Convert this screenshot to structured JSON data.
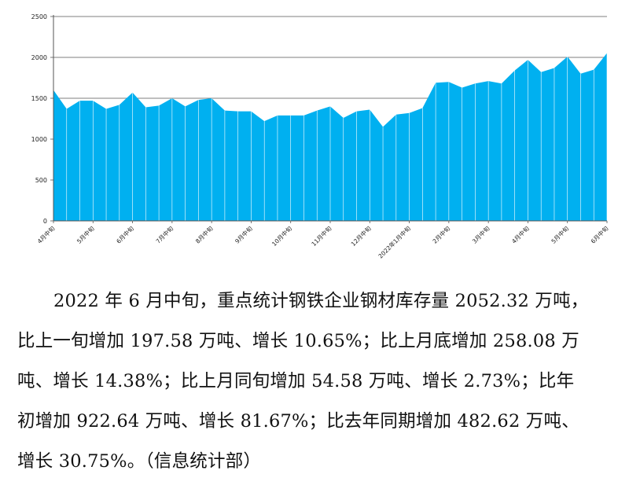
{
  "chart_data": {
    "type": "area",
    "title": "",
    "xlabel": "",
    "ylabel": "",
    "ylim": [
      0,
      2500
    ],
    "yticks": [
      0,
      500,
      1000,
      1500,
      2000,
      2500
    ],
    "x_tick_labels": [
      "4月中旬",
      "5月中旬",
      "6月中旬",
      "7月中旬",
      "8月中旬",
      "9月中旬",
      "10月中旬",
      "11月中旬",
      "12月中旬",
      "2022年1月中旬",
      "2月中旬",
      "3月中旬",
      "4月中旬",
      "5月中旬",
      "6月中旬"
    ],
    "grid": true,
    "color": "#00b0f0",
    "values": [
      1600,
      1370,
      1470,
      1470,
      1370,
      1420,
      1570,
      1390,
      1410,
      1500,
      1400,
      1480,
      1500,
      1350,
      1340,
      1340,
      1220,
      1290,
      1290,
      1290,
      1350,
      1400,
      1260,
      1340,
      1360,
      1150,
      1300,
      1320,
      1380,
      1690,
      1700,
      1630,
      1680,
      1710,
      1680,
      1840,
      1970,
      1820,
      1870,
      2010,
      1800,
      1850,
      2052.32
    ]
  },
  "paragraph": {
    "lines": [
      "2022 年 6 月中旬，重点统计钢铁企业钢材库存量 2052.32 万吨，",
      "比上一旬增加 197.58 万吨、增长 10.65%；比上月底增加 258.08 万",
      "吨、增长 14.38%；比上月同旬增加 54.58 万吨、增长 2.73%；比年",
      "初增加 922.64 万吨、增长 81.67%；比去年同期增加 482.62 万吨、",
      "增长 30.75%。（信息统计部）"
    ]
  }
}
